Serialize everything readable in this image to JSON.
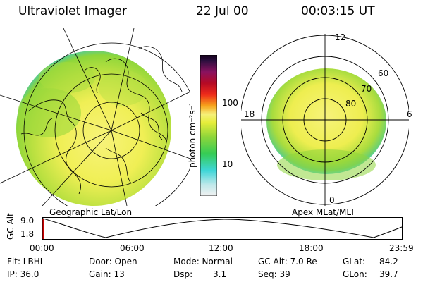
{
  "header": {
    "title": "Ultraviolet Imager",
    "date": "22 Jul 00",
    "time": "00:03:15 UT"
  },
  "panels": {
    "geo_label": "Geographic Lat/Lon",
    "mag_label": "Apex MLat/MLT"
  },
  "colorbar": {
    "unit_label": "photon cm⁻²s⁻¹",
    "ticks": [
      "100",
      "10"
    ]
  },
  "polar_plot": {
    "mlt_labels": {
      "top": "12",
      "left": "18",
      "right": "6",
      "bottom": "0"
    },
    "lat_labels": [
      "60",
      "70",
      "80"
    ]
  },
  "altitude_plot": {
    "ylabel": "GC Alt",
    "yticks": [
      "9.0",
      "1.8"
    ],
    "xticks": [
      "00:00",
      "06:00",
      "12:00",
      "18:00",
      "23:59"
    ]
  },
  "info": {
    "flt": "Flt: LBHL",
    "ip": "IP: 36.0",
    "door": "Door: Open",
    "gain": "Gain: 13",
    "mode": "Mode: Normal",
    "dsp_label": "Dsp:",
    "dsp_value": "3.1",
    "gcalt": "GC Alt: 7.0 Re",
    "seq": "Seq: 39",
    "glat_label": "GLat:",
    "glat_value": "84.2",
    "glon_label": "GLon:",
    "glon_value": "39.7"
  },
  "colors": {
    "image_yellow": "#f5f05a",
    "image_green": "#8ed63a",
    "image_cyan": "#4cd4d8"
  }
}
